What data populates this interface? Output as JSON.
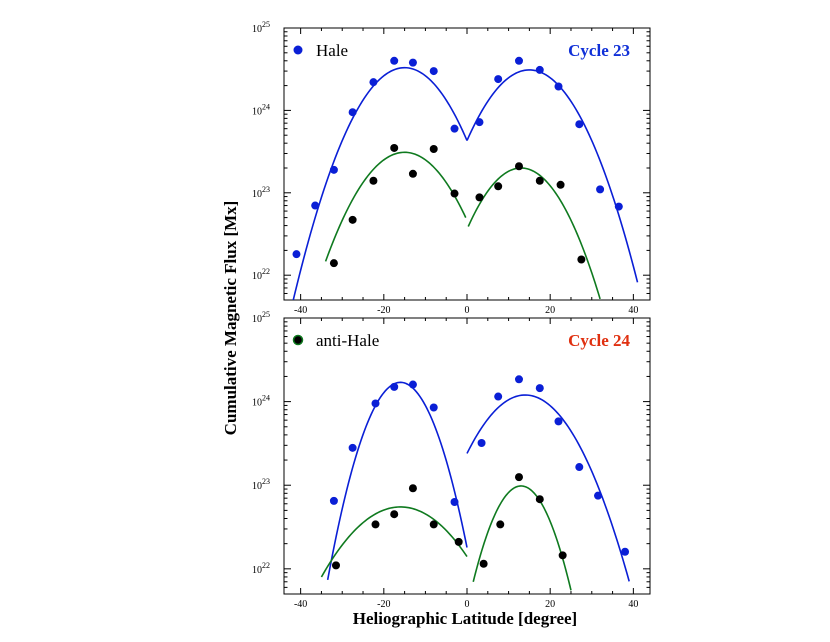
{
  "figure": {
    "ylabel": "Cumulative Magnetic Flux [Mx]",
    "xlabel": "Heliographic Latitude [degree]"
  },
  "colors": {
    "blue": "#0a1fd6",
    "green": "#0f7a1f",
    "black": "#000000",
    "cycle23": "#1030d8",
    "cycle24": "#e03010"
  },
  "chart_data": [
    {
      "type": "scatter",
      "panel": "top",
      "annotation": "Cycle 23",
      "legend": {
        "label": "Hale",
        "marker_color": "#0a1fd6",
        "placement": "top-left"
      },
      "x_ticks": [
        -40,
        -20,
        0,
        20,
        40
      ],
      "y_tick_exponents": [
        22,
        23,
        24,
        25
      ],
      "y_tick_base": "10",
      "xlim": [
        -44,
        44
      ],
      "ylim": [
        5e+21,
        1e+25
      ],
      "yscale": "log",
      "series": [
        {
          "color": "#0a1fd6",
          "points": [
            [
              -41,
              1.8e+22
            ],
            [
              -36.5,
              7e+22
            ],
            [
              -32,
              1.9e+23
            ],
            [
              -27.5,
              9.5e+23
            ],
            [
              -22.5,
              2.2e+24
            ],
            [
              -17.5,
              4e+24
            ],
            [
              -13,
              3.8e+24
            ],
            [
              -8,
              3e+24
            ],
            [
              -3,
              6e+23
            ],
            [
              3,
              7.2e+23
            ],
            [
              7.5,
              2.4e+24
            ],
            [
              12.5,
              4e+24
            ],
            [
              17.5,
              3.1e+24
            ],
            [
              22,
              1.95e+24
            ],
            [
              27,
              6.8e+23
            ],
            [
              32,
              1.1e+23
            ],
            [
              36.5,
              6.8e+22
            ]
          ]
        },
        {
          "color": "#000000",
          "points": [
            [
              -32,
              1.4e+22
            ],
            [
              -27.5,
              4.7e+22
            ],
            [
              -22.5,
              1.4e+23
            ],
            [
              -17.5,
              3.5e+23
            ],
            [
              -13,
              1.7e+23
            ],
            [
              -8,
              3.4e+23
            ],
            [
              -3,
              9.8e+22
            ],
            [
              3,
              8.8e+22
            ],
            [
              7.5,
              1.2e+23
            ],
            [
              12.5,
              2.1e+23
            ],
            [
              17.5,
              1.4e+23
            ],
            [
              22.5,
              1.25e+23
            ],
            [
              27.5,
              1.55e+22
            ]
          ]
        }
      ],
      "fits": [
        {
          "color": "#0a1fd6",
          "segments": [
            {
              "peak_x": -15,
              "peak_y": 3.3e+24,
              "x_range": [
                -43,
                0
              ],
              "x_end_y": 4.3e+23
            },
            {
              "peak_x": 15,
              "peak_y": 3.1e+24,
              "x_range": [
                0,
                41
              ],
              "x_end_y": 4.3e+23
            }
          ]
        },
        {
          "color": "#0f7a1f",
          "segments": [
            {
              "peak_x": -15,
              "peak_y": 3.1e+23,
              "x_range": [
                -34,
                -0.3
              ],
              "x_end_y": 5e+22
            },
            {
              "peak_x": 13,
              "peak_y": 2e+23,
              "x_range": [
                0.3,
                32
              ],
              "x_end_y": 3.9e+22
            }
          ]
        }
      ]
    },
    {
      "type": "scatter",
      "panel": "bottom",
      "annotation": "Cycle 24",
      "legend": {
        "label": "anti-Hale",
        "marker_color": "#000000",
        "marker_edge": "#0f7a1f",
        "placement": "top-left"
      },
      "x_ticks": [
        -40,
        -20,
        0,
        20,
        40
      ],
      "y_tick_exponents": [
        22,
        23,
        24,
        25
      ],
      "y_tick_base": "10",
      "xlim": [
        -44,
        44
      ],
      "ylim": [
        5e+21,
        1e+25
      ],
      "yscale": "log",
      "series": [
        {
          "color": "#0a1fd6",
          "points": [
            [
              -32,
              6.5e+22
            ],
            [
              -27.5,
              2.8e+23
            ],
            [
              -22,
              9.5e+23
            ],
            [
              -17.5,
              1.5e+24
            ],
            [
              -13,
              1.6e+24
            ],
            [
              -8,
              8.5e+23
            ],
            [
              -3,
              6.3e+22
            ],
            [
              3.5,
              3.2e+23
            ],
            [
              7.5,
              1.15e+24
            ],
            [
              12.5,
              1.85e+24
            ],
            [
              17.5,
              1.45e+24
            ],
            [
              22,
              5.8e+23
            ],
            [
              27,
              1.65e+23
            ],
            [
              31.5,
              7.5e+22
            ],
            [
              38,
              1.6e+22
            ]
          ]
        },
        {
          "color": "#000000",
          "points": [
            [
              -31.5,
              1.1e+22
            ],
            [
              -22,
              3.4e+22
            ],
            [
              -17.5,
              4.5e+22
            ],
            [
              -13,
              9.2e+22
            ],
            [
              -8,
              3.4e+22
            ],
            [
              -2,
              2.1e+22
            ],
            [
              4,
              1.15e+22
            ],
            [
              8,
              3.4e+22
            ],
            [
              12.5,
              1.25e+23
            ],
            [
              17.5,
              6.8e+22
            ],
            [
              23,
              1.45e+22
            ]
          ]
        }
      ],
      "fits": [
        {
          "color": "#0a1fd6",
          "segments": [
            {
              "peak_x": -16,
              "peak_y": 1.7e+24,
              "x_range": [
                -33.5,
                0
              ],
              "x_end_y": 1.8e+22
            },
            {
              "peak_x": 14,
              "peak_y": 1.2e+24,
              "x_range": [
                0,
                39
              ],
              "x_end_y": 2.4e+23
            }
          ]
        },
        {
          "color": "#0f7a1f",
          "segments": [
            {
              "peak_x": -16,
              "peak_y": 5.5e+22,
              "x_range": [
                -35,
                0
              ],
              "x_end_y": 1.4e+22
            },
            {
              "peak_x": 13,
              "peak_y": 9.8e+22,
              "x_range": [
                1.5,
                25
              ],
              "x_end_y": 7e+21
            }
          ]
        }
      ]
    }
  ]
}
